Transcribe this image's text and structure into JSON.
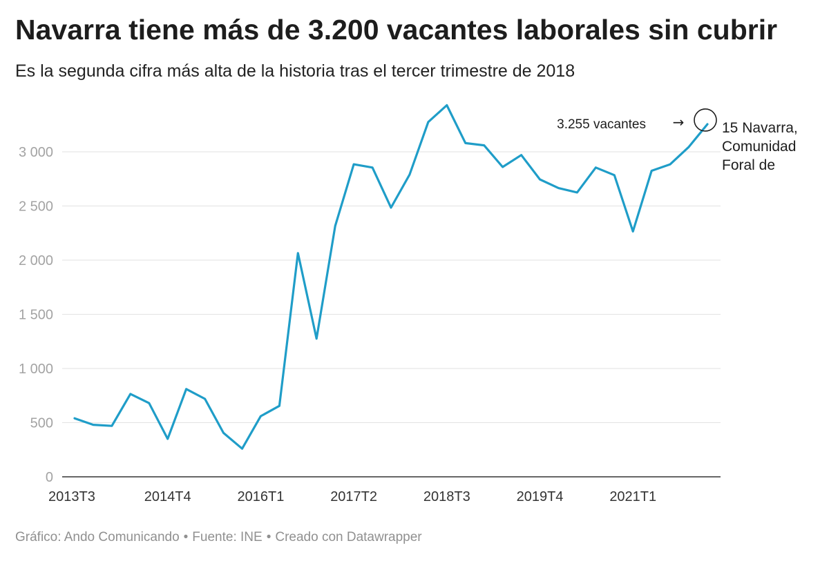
{
  "header": {
    "title": "Navarra tiene más de 3.200 vacantes laborales sin cubrir",
    "subtitle": "Es la segunda cifra más alta de la historia tras el tercer trimestre de 2018"
  },
  "footer": {
    "credit": "Gráfico: Ando Comunicando",
    "separator": "•",
    "source": "Fuente: INE",
    "tool": "Creado con Datawrapper"
  },
  "chart_data": {
    "type": "line",
    "title": "Navarra tiene más de 3.200 vacantes laborales sin cubrir",
    "subtitle": "Es la segunda cifra más alta de la historia tras el tercer trimestre de 2018",
    "x_tick_labels": [
      "2013T3",
      "2014T4",
      "2016T1",
      "2017T2",
      "2018T3",
      "2019T4",
      "2021T1"
    ],
    "y_tick_labels": [
      "0",
      "500",
      "1 000",
      "1 500",
      "2 000",
      "2 500",
      "3 000"
    ],
    "y_ticks": [
      0,
      500,
      1000,
      1500,
      2000,
      2500,
      3000
    ],
    "ylim": [
      0,
      3450
    ],
    "grid": true,
    "line_color": "#1f9dc8",
    "series": [
      {
        "name": "15 Navarra, Comunidad Foral de",
        "x": [
          "2013T3",
          "2013T4",
          "2014T1",
          "2014T2",
          "2014T3",
          "2014T4",
          "2015T1",
          "2015T2",
          "2015T3",
          "2015T4",
          "2016T1",
          "2016T2",
          "2016T3",
          "2016T4",
          "2017T1",
          "2017T2",
          "2017T3",
          "2017T4",
          "2018T1",
          "2018T2",
          "2018T3",
          "2018T4",
          "2019T1",
          "2019T2",
          "2019T3",
          "2019T4",
          "2020T1",
          "2020T2",
          "2020T3",
          "2020T4",
          "2021T1",
          "2021T2",
          "2021T3",
          "2021T4",
          "2022T1"
        ],
        "values": [
          540,
          480,
          470,
          765,
          680,
          350,
          810,
          720,
          405,
          260,
          560,
          655,
          2065,
          1275,
          2315,
          2885,
          2855,
          2485,
          2790,
          3275,
          3430,
          3080,
          3060,
          2860,
          2970,
          2745,
          2665,
          2625,
          2855,
          2785,
          2265,
          2825,
          2885,
          3045,
          3255
        ]
      }
    ],
    "series_label_lines": [
      "15 Navarra,",
      "Comunidad",
      "Foral de"
    ],
    "annotation": {
      "text": "3.255 vacantes",
      "arrow": "→",
      "target_x": "2022T1",
      "target_value": 3255
    }
  }
}
